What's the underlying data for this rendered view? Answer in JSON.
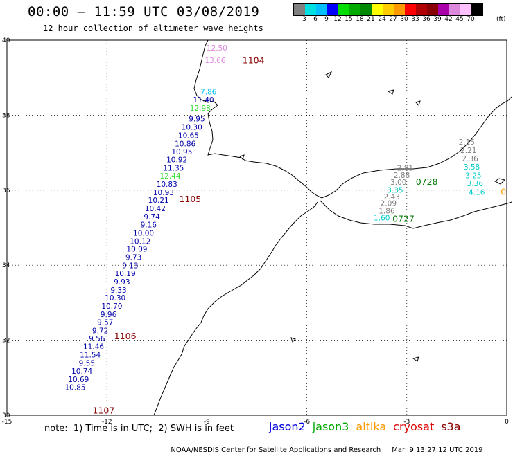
{
  "header": {
    "title": "00:00 – 11:59 UTC 03/08/2019",
    "subtitle": "12 hour collection of altimeter wave heights"
  },
  "colorbar": {
    "colors": [
      "#808080",
      "#00e0e0",
      "#00bfff",
      "#0000ff",
      "#00dd00",
      "#00aa00",
      "#008800",
      "#ffff00",
      "#ffcc00",
      "#ff9900",
      "#ff0000",
      "#b00000",
      "#880000",
      "#aa00aa",
      "#dd88dd",
      "#ffc0ff",
      "#000000"
    ],
    "labels": [
      "3",
      "6",
      "9",
      "12",
      "15",
      "18",
      "21",
      "24",
      "27",
      "30",
      "33",
      "36",
      "39",
      "42",
      "45",
      "70"
    ],
    "unit": "(ft)"
  },
  "map": {
    "lon_range": [
      -15,
      0
    ],
    "lat_range": [
      30,
      40
    ],
    "lon_ticks": [
      "-15",
      "-12",
      "-9",
      "-6",
      "-3",
      "0"
    ],
    "lat_ticks": [
      "30",
      "32",
      "34",
      "36",
      "38",
      "40"
    ]
  },
  "tracks": [
    {
      "id": "1104",
      "mission": "cryosat",
      "obs": [
        {
          "value": "12.50",
          "color": "#dd88dd",
          "lat": 39.72,
          "lon": -8.7
        },
        {
          "value": "13.66",
          "color": "#dd88dd",
          "lat": 39.39,
          "lon": -8.75
        },
        {
          "value": "7.86",
          "color": "#00bfff",
          "lat": 38.55,
          "lon": -8.95
        },
        {
          "value": "11.40",
          "color": "#0000aa",
          "lat": 38.34,
          "lon": -9.1
        },
        {
          "value": "12.98",
          "color": "#33dd33",
          "lat": 38.12,
          "lon": -9.2
        },
        {
          "value": "9.95",
          "color": "#0000aa",
          "lat": 37.83,
          "lon": -9.3
        },
        {
          "value": "10.30",
          "color": "#0000aa",
          "lat": 37.61,
          "lon": -9.45
        },
        {
          "value": "10.65",
          "color": "#0000aa",
          "lat": 37.39,
          "lon": -9.55
        },
        {
          "value": "10.86",
          "color": "#0000aa",
          "lat": 37.17,
          "lon": -9.65
        },
        {
          "value": "10.95",
          "color": "#0000aa",
          "lat": 36.96,
          "lon": -9.75
        },
        {
          "value": "10.92",
          "color": "#0000aa",
          "lat": 36.74,
          "lon": -9.9
        },
        {
          "value": "11.35",
          "color": "#0000aa",
          "lat": 36.52,
          "lon": -10.0
        },
        {
          "value": "12.44",
          "color": "#33dd33",
          "lat": 36.31,
          "lon": -10.1
        },
        {
          "value": "10.83",
          "color": "#0000aa",
          "lat": 36.09,
          "lon": -10.2
        },
        {
          "value": "10.93",
          "color": "#0000aa",
          "lat": 35.87,
          "lon": -10.3
        },
        {
          "value": "10.21",
          "color": "#0000aa",
          "lat": 35.66,
          "lon": -10.45
        },
        {
          "value": "10.42",
          "color": "#0000aa",
          "lat": 35.44,
          "lon": -10.55
        },
        {
          "value": "9.74",
          "color": "#0000aa",
          "lat": 35.22,
          "lon": -10.65
        },
        {
          "value": "9.16",
          "color": "#0000aa",
          "lat": 35.01,
          "lon": -10.75
        },
        {
          "value": "10.00",
          "color": "#0000aa",
          "lat": 34.79,
          "lon": -10.9
        },
        {
          "value": "10.12",
          "color": "#0000aa",
          "lat": 34.57,
          "lon": -11.0
        },
        {
          "value": "10.09",
          "color": "#0000aa",
          "lat": 34.36,
          "lon": -11.1
        },
        {
          "value": "9.73",
          "color": "#0000aa",
          "lat": 34.14,
          "lon": -11.2
        },
        {
          "value": "9.13",
          "color": "#0000aa",
          "lat": 33.92,
          "lon": -11.3
        },
        {
          "value": "10.19",
          "color": "#0000aa",
          "lat": 33.71,
          "lon": -11.45
        },
        {
          "value": "9.93",
          "color": "#0000aa",
          "lat": 33.49,
          "lon": -11.55
        },
        {
          "value": "9.33",
          "color": "#0000aa",
          "lat": 33.27,
          "lon": -11.65
        },
        {
          "value": "10.30",
          "color": "#0000aa",
          "lat": 33.06,
          "lon": -11.75
        },
        {
          "value": "10.70",
          "color": "#0000aa",
          "lat": 32.84,
          "lon": -11.85
        },
        {
          "value": "9.96",
          "color": "#0000aa",
          "lat": 32.62,
          "lon": -11.95
        },
        {
          "value": "9.57",
          "color": "#0000aa",
          "lat": 32.41,
          "lon": -12.05
        },
        {
          "value": "9.72",
          "color": "#0000aa",
          "lat": 32.19,
          "lon": -12.2
        },
        {
          "value": "9.56",
          "color": "#0000aa",
          "lat": 31.97,
          "lon": -12.3
        },
        {
          "value": "11.46",
          "color": "#0000aa",
          "lat": 31.76,
          "lon": -12.4
        },
        {
          "value": "11.54",
          "color": "#0000aa",
          "lat": 31.54,
          "lon": -12.5
        },
        {
          "value": "9.55",
          "color": "#0000aa",
          "lat": 31.32,
          "lon": -12.6
        },
        {
          "value": "10.74",
          "color": "#0000aa",
          "lat": 31.11,
          "lon": -12.75
        },
        {
          "value": "10.69",
          "color": "#0000aa",
          "lat": 30.89,
          "lon": -12.85
        },
        {
          "value": "10.85",
          "color": "#0000aa",
          "lat": 30.67,
          "lon": -12.95
        }
      ]
    },
    {
      "id": "0728",
      "mission": "jason3",
      "obs": [
        {
          "value": "2.15",
          "color": "#808080",
          "lat": 37.21,
          "lon": -1.2
        },
        {
          "value": "2.21",
          "color": "#808080",
          "lat": 36.99,
          "lon": -1.15
        },
        {
          "value": "2.36",
          "color": "#808080",
          "lat": 36.77,
          "lon": -1.1
        },
        {
          "value": "3.58",
          "color": "#00cccc",
          "lat": 36.55,
          "lon": -1.05
        },
        {
          "value": "3.25",
          "color": "#00cccc",
          "lat": 36.32,
          "lon": -1.0
        },
        {
          "value": "3.36",
          "color": "#00cccc",
          "lat": 36.11,
          "lon": -0.95
        },
        {
          "value": "4.16",
          "color": "#00cccc",
          "lat": 35.88,
          "lon": -0.9
        },
        {
          "value": "2.81",
          "color": "#808080",
          "lat": 36.52,
          "lon": -3.05
        },
        {
          "value": "2.88",
          "color": "#808080",
          "lat": 36.33,
          "lon": -3.15
        },
        {
          "value": "3.00",
          "color": "#808080",
          "lat": 36.14,
          "lon": -3.25
        }
      ]
    },
    {
      "id": "0727",
      "mission": "jason3",
      "obs": [
        {
          "value": "3.35",
          "color": "#00cccc",
          "lat": 35.93,
          "lon": -3.35
        },
        {
          "value": "2.43",
          "color": "#808080",
          "lat": 35.76,
          "lon": -3.45
        },
        {
          "value": "2.09",
          "color": "#808080",
          "lat": 35.58,
          "lon": -3.55
        },
        {
          "value": "1.86",
          "color": "#808080",
          "lat": 35.38,
          "lon": -3.6
        },
        {
          "value": "1.60",
          "color": "#00cccc",
          "lat": 35.19,
          "lon": -3.75
        }
      ]
    }
  ],
  "track_labels": [
    {
      "text": "1104",
      "color": "#880000",
      "lat": 39.38,
      "lon": -7.6
    },
    {
      "text": "1105",
      "color": "#880000",
      "lat": 35.68,
      "lon": -9.5
    },
    {
      "text": "1106",
      "color": "#880000",
      "lat": 32.03,
      "lon": -11.45
    },
    {
      "text": "1107",
      "color": "#880000",
      "lat": 30.05,
      "lon": -12.1
    },
    {
      "text": "0728",
      "color": "#007700",
      "lat": 36.14,
      "lon": -2.4
    },
    {
      "text": "0727",
      "color": "#007700",
      "lat": 35.16,
      "lon": -3.1
    },
    {
      "text": "0",
      "color": "#ff9900",
      "lat": 35.88,
      "lon": -0.1
    }
  ],
  "note": "note:  1) Time is in UTC;  2) SWH is in feet",
  "legend": [
    {
      "name": "jason2",
      "color": "#0000dd"
    },
    {
      "name": "jason3",
      "color": "#00aa00"
    },
    {
      "name": "altika",
      "color": "#ff9900"
    },
    {
      "name": "cryosat",
      "color": "#dd0000"
    },
    {
      "name": "s3a",
      "color": "#880000"
    }
  ],
  "footer": {
    "org": "NOAA/NESDIS Center for Satellite Applications and Research",
    "timestamp": "Mar  9 13:27:12 UTC 2019"
  }
}
